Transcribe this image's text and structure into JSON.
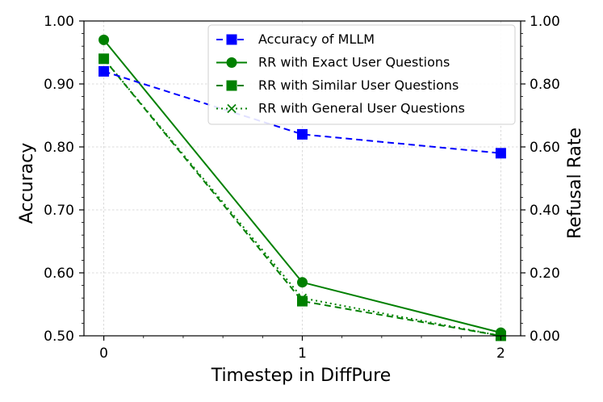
{
  "chart_data": {
    "type": "line",
    "x": [
      0,
      1,
      2
    ],
    "xlabel": "Timestep in DiffPure",
    "ylabel_left": "Accuracy",
    "ylabel_right": "Refusal Rate",
    "ylim_left": [
      0.5,
      1.0
    ],
    "ylim_right": [
      0.0,
      1.0
    ],
    "xticks": [
      "0",
      "1",
      "2"
    ],
    "yticks_left": [
      "0.50",
      "0.60",
      "0.70",
      "0.80",
      "0.90",
      "1.00"
    ],
    "yticks_right": [
      "0.00",
      "0.20",
      "0.40",
      "0.60",
      "0.80",
      "1.00"
    ],
    "grid": true,
    "legend_position": "top-right",
    "series": [
      {
        "name": "Accuracy of MLLM",
        "axis": "left",
        "values": [
          0.92,
          0.82,
          0.79
        ],
        "color": "#0000ff",
        "line_style": "dashed",
        "marker": "square"
      },
      {
        "name": "RR with Exact User Questions",
        "axis": "right",
        "values": [
          0.94,
          0.17,
          0.01
        ],
        "color": "#008000",
        "line_style": "solid",
        "marker": "circle"
      },
      {
        "name": "RR with Similar User Questions",
        "axis": "right",
        "values": [
          0.88,
          0.11,
          0.0
        ],
        "color": "#008000",
        "line_style": "dashed",
        "marker": "square"
      },
      {
        "name": "RR with General User Questions",
        "axis": "right",
        "values": [
          0.88,
          0.12,
          0.0
        ],
        "color": "#008000",
        "line_style": "dotted",
        "marker": "x"
      }
    ]
  }
}
